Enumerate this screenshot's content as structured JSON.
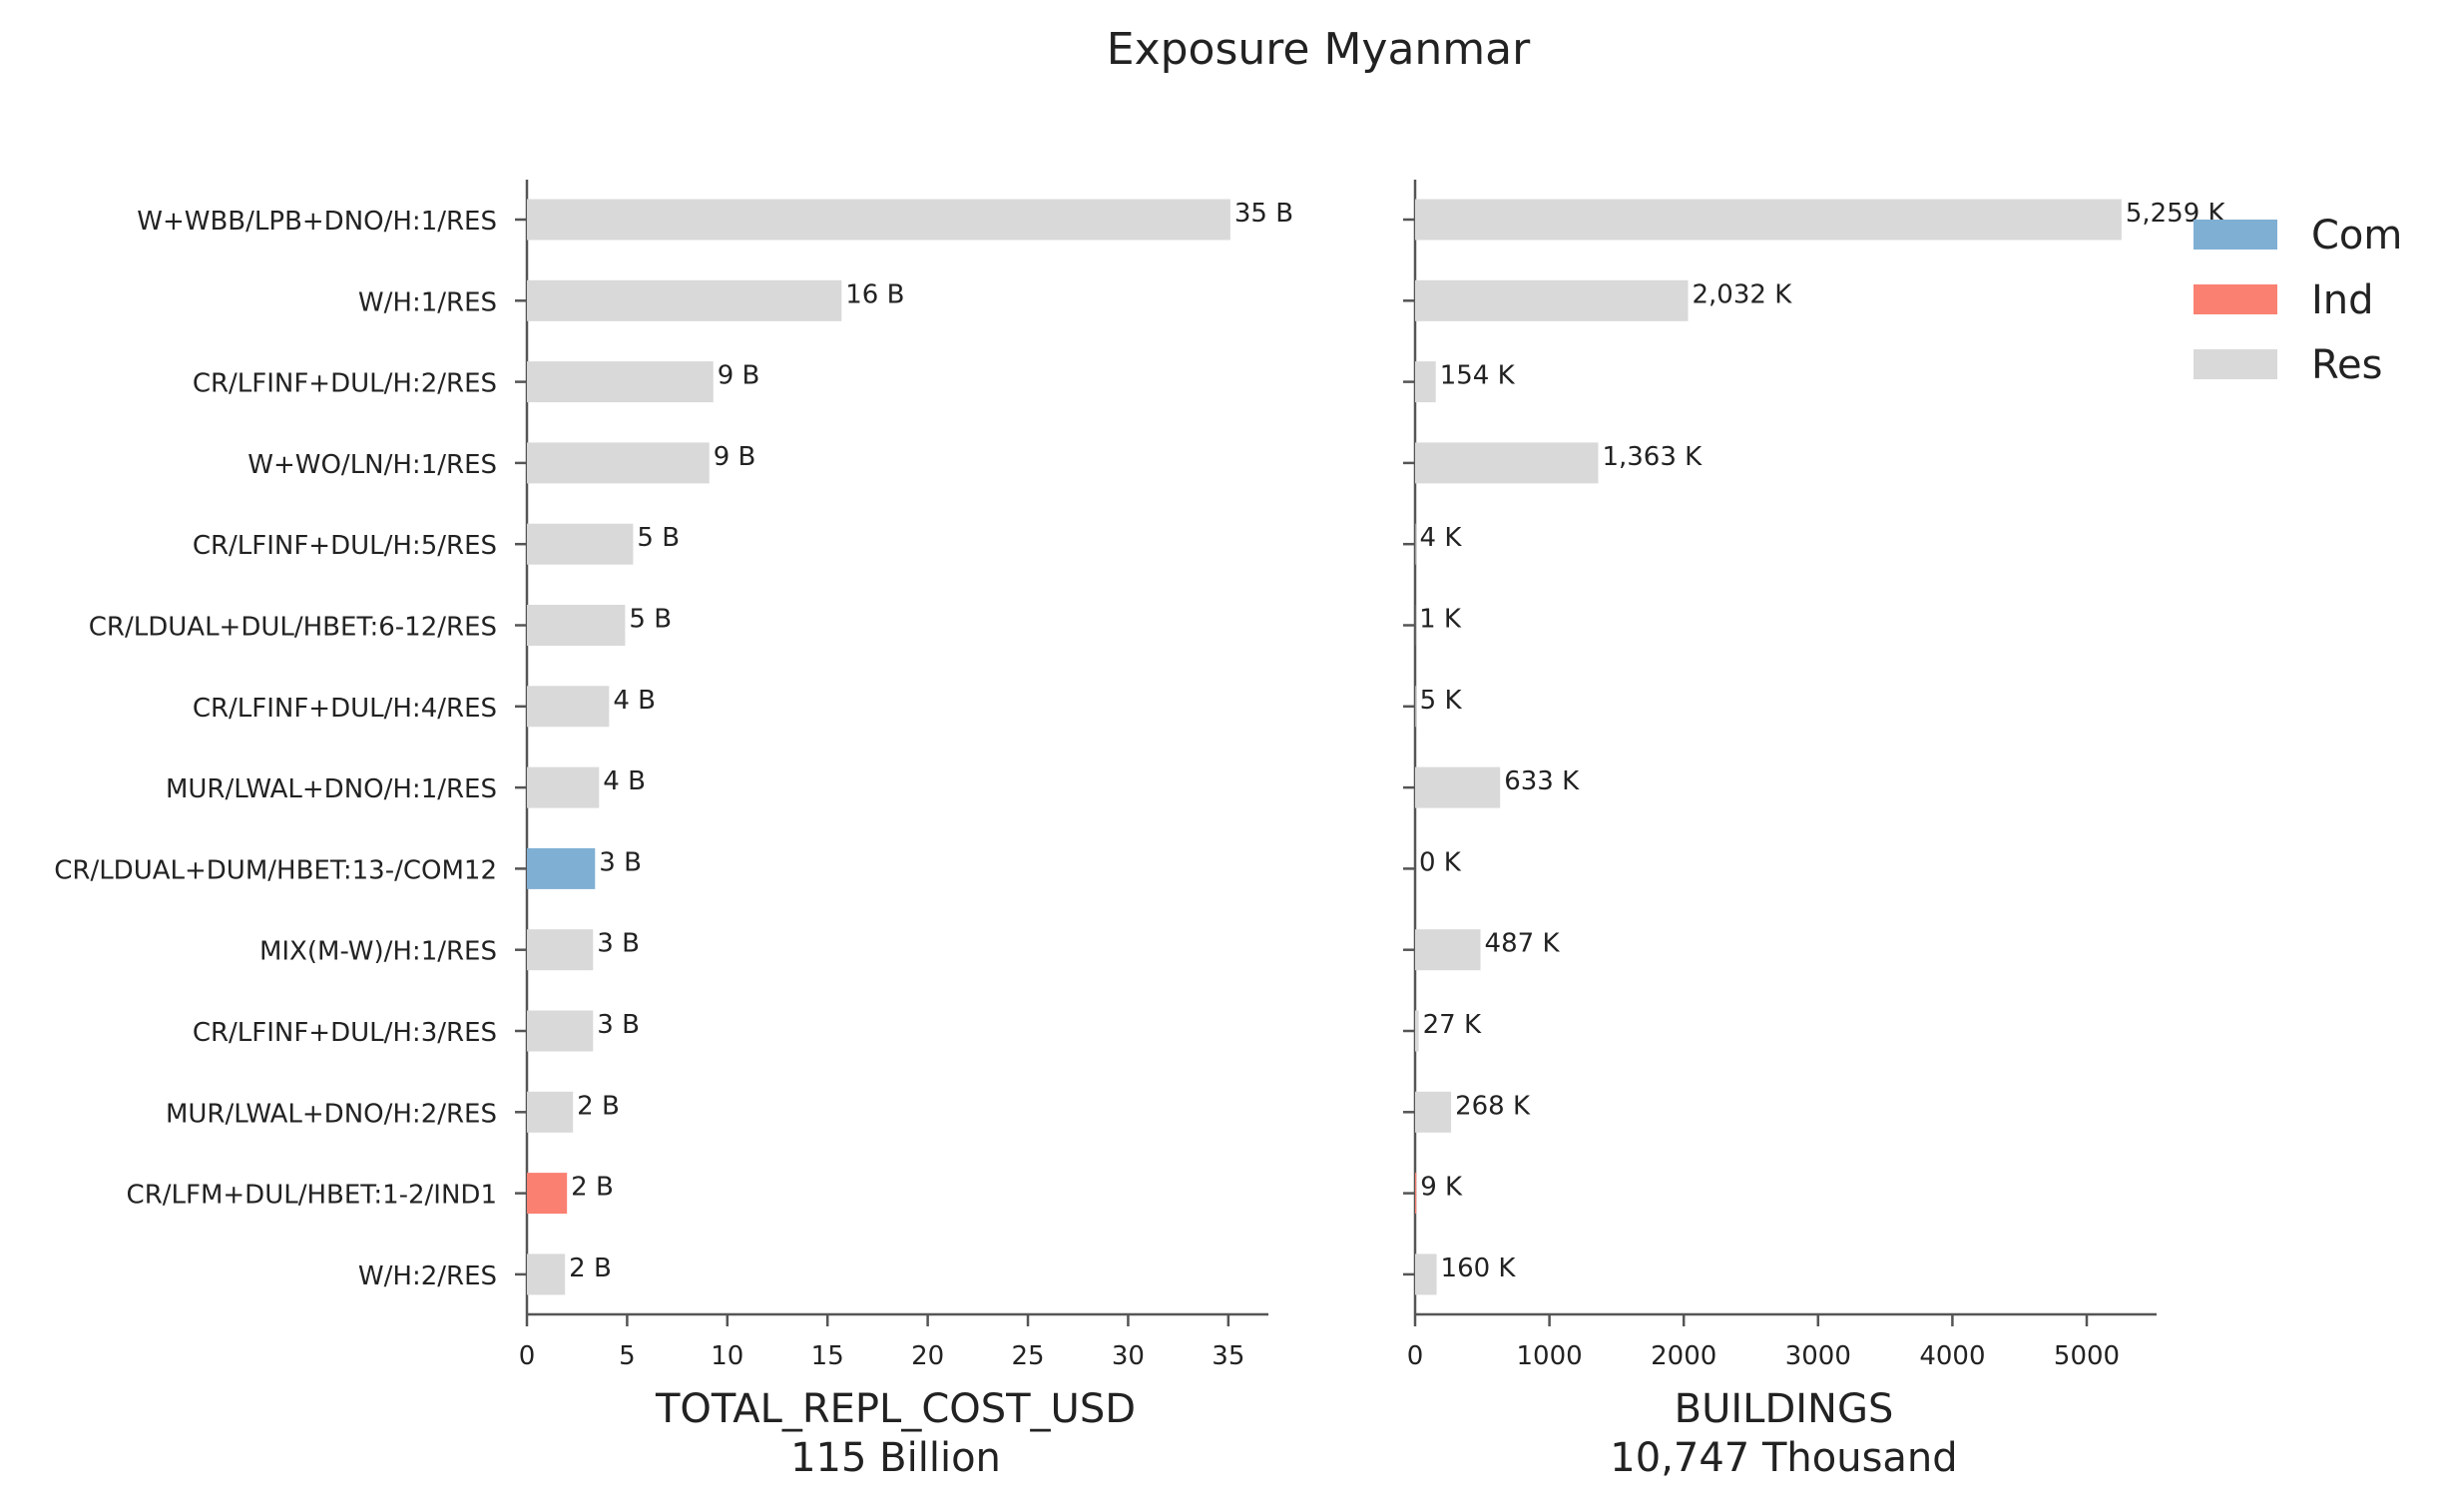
{
  "title": "Exposure Myanmar",
  "chart_data": [
    {
      "type": "bar",
      "orientation": "horizontal",
      "categories": [
        "W+WBB/LPB+DNO/H:1/RES",
        "W/H:1/RES",
        "CR/LFINF+DUL/H:2/RES",
        "W+WO/LN/H:1/RES",
        "CR/LFINF+DUL/H:5/RES",
        "CR/LDUAL+DUL/HBET:6-12/RES",
        "CR/LFINF+DUL/H:4/RES",
        "MUR/LWAL+DNO/H:1/RES",
        "CR/LDUAL+DUM/HBET:13-/COM12",
        "MIX(M-W)/H:1/RES",
        "CR/LFINF+DUL/H:3/RES",
        "MUR/LWAL+DNO/H:2/RES",
        "CR/LFM+DUL/HBET:1-2/IND1",
        "W/H:2/RES"
      ],
      "groups": [
        "Res",
        "Res",
        "Res",
        "Res",
        "Res",
        "Res",
        "Res",
        "Res",
        "Com",
        "Res",
        "Res",
        "Res",
        "Ind",
        "Res"
      ],
      "values": [
        35.1,
        15.7,
        9.3,
        9.1,
        5.3,
        4.9,
        4.1,
        3.6,
        3.4,
        3.3,
        3.3,
        2.3,
        2.0,
        1.9
      ],
      "data_labels": [
        "35 B",
        "16 B",
        "9 B",
        "9 B",
        "5 B",
        "5 B",
        "4 B",
        "4 B",
        "3 B",
        "3 B",
        "3 B",
        "2 B",
        "2 B",
        "2 B"
      ],
      "xlabel": "TOTAL_REPL_COST_USD",
      "xlabel2": "115 Billion",
      "xlim": [
        0,
        37
      ],
      "xticks": [
        0,
        5,
        10,
        15,
        20,
        25,
        30,
        35
      ],
      "grid": false
    },
    {
      "type": "bar",
      "orientation": "horizontal",
      "categories": [
        "W+WBB/LPB+DNO/H:1/RES",
        "W/H:1/RES",
        "CR/LFINF+DUL/H:2/RES",
        "W+WO/LN/H:1/RES",
        "CR/LFINF+DUL/H:5/RES",
        "CR/LDUAL+DUL/HBET:6-12/RES",
        "CR/LFINF+DUL/H:4/RES",
        "MUR/LWAL+DNO/H:1/RES",
        "CR/LDUAL+DUM/HBET:13-/COM12",
        "MIX(M-W)/H:1/RES",
        "CR/LFINF+DUL/H:3/RES",
        "MUR/LWAL+DNO/H:2/RES",
        "CR/LFM+DUL/HBET:1-2/IND1",
        "W/H:2/RES"
      ],
      "groups": [
        "Res",
        "Res",
        "Res",
        "Res",
        "Res",
        "Res",
        "Res",
        "Res",
        "Com",
        "Res",
        "Res",
        "Res",
        "Ind",
        "Res"
      ],
      "values": [
        5259,
        2032,
        154,
        1363,
        4,
        1,
        5,
        633,
        0,
        487,
        27,
        268,
        9,
        160
      ],
      "data_labels": [
        "5,259 K",
        "2,032 K",
        "154 K",
        "1,363 K",
        "4 K",
        "1 K",
        "5 K",
        "633 K",
        "0 K",
        "487 K",
        "27 K",
        "268 K",
        "9 K",
        "160 K"
      ],
      "xlabel": "BUILDINGS",
      "xlabel2": "10,747 Thousand",
      "xlim": [
        0,
        5520
      ],
      "xticks": [
        0,
        1000,
        2000,
        3000,
        4000,
        5000
      ],
      "grid": false
    }
  ],
  "legend": {
    "placement": "top-right",
    "items": [
      {
        "label": "Com",
        "color": "#7fafd3"
      },
      {
        "label": "Ind",
        "color": "#fa8072"
      },
      {
        "label": "Res",
        "color": "#d9d9d9"
      }
    ]
  },
  "colors": {
    "Com": "#7fafd3",
    "Ind": "#fa8072",
    "Res": "#d9d9d9",
    "axis": "#555555"
  }
}
